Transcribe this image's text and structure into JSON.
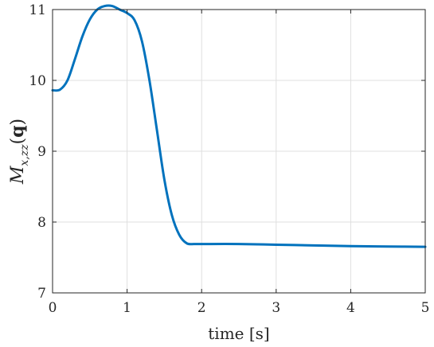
{
  "chart_data": {
    "type": "line",
    "title": "",
    "xlabel": "time [s]",
    "ylabel": {
      "symbol": "M",
      "subscript": "x,zz",
      "open_paren": "(",
      "argument": "q",
      "close_paren": ")"
    },
    "xlim": [
      0,
      5
    ],
    "ylim": [
      7,
      11
    ],
    "xticks": [
      0,
      1,
      2,
      3,
      4,
      5
    ],
    "yticks": [
      7,
      8,
      9,
      10,
      11
    ],
    "xtick_labels": [
      "0",
      "1",
      "2",
      "3",
      "4",
      "5"
    ],
    "ytick_labels": [
      "7",
      "8",
      "9",
      "10",
      "11"
    ],
    "grid": true,
    "legend": "none",
    "line_color": "#0072BD",
    "series": [
      {
        "x": [
          0,
          0.1,
          0.2,
          0.3,
          0.4,
          0.5,
          0.6,
          0.7,
          0.8,
          0.9,
          1.0,
          1.1,
          1.2,
          1.3,
          1.4,
          1.5,
          1.6,
          1.7,
          1.8,
          1.9,
          2.0,
          2.5,
          3.0,
          3.5,
          4.0,
          4.5,
          5.0
        ],
        "y": [
          9.86,
          9.87,
          10.0,
          10.3,
          10.62,
          10.86,
          11.0,
          11.05,
          11.05,
          11.0,
          10.95,
          10.85,
          10.55,
          10.0,
          9.3,
          8.6,
          8.1,
          7.82,
          7.7,
          7.69,
          7.69,
          7.69,
          7.68,
          7.67,
          7.66,
          7.655,
          7.65
        ]
      }
    ]
  }
}
